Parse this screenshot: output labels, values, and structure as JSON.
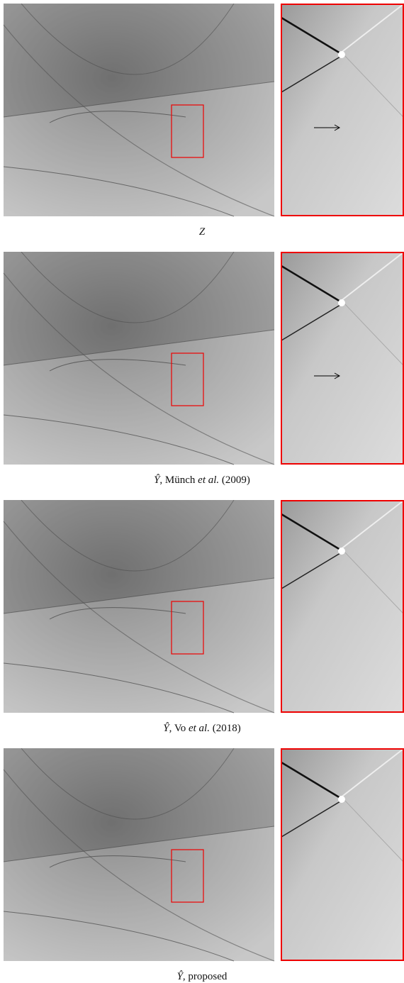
{
  "panels": [
    {
      "caption": [
        "Z"
      ]
    },
    {
      "caption": [
        "Ŷ",
        ", Münch ",
        "et al.",
        " (2009)"
      ]
    },
    {
      "caption": [
        "Ŷ",
        ", Vo ",
        "et al.",
        " (2018)"
      ]
    },
    {
      "caption": [
        "Ŷ",
        ", proposed"
      ]
    }
  ]
}
